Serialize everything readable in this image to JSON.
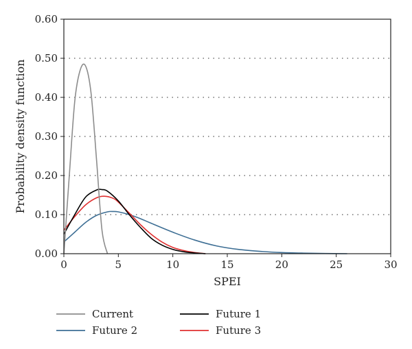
{
  "chart_data": {
    "type": "line",
    "title": "",
    "xlabel": "SPEI",
    "ylabel": "Probability density function",
    "xlim": [
      0,
      30
    ],
    "ylim": [
      0,
      0.6
    ],
    "xticks": [
      0,
      5,
      10,
      15,
      20,
      25,
      30
    ],
    "xtick_labels": [
      "0",
      "5",
      "10",
      "15",
      "20",
      "25",
      "30"
    ],
    "yticks": [
      0,
      0.1,
      0.2,
      0.3,
      0.4,
      0.5,
      0.6
    ],
    "ytick_labels": [
      "0.00",
      "0.10",
      "0.20",
      "0.30",
      "0.40",
      "0.50",
      "0.60"
    ],
    "grid": "horizontal dotted",
    "legend_placement": "bottom",
    "series": [
      {
        "name": "Current",
        "color": "#8c8c8c",
        "x": [
          0,
          0.5,
          1,
          1.5,
          2,
          2.5,
          3,
          3.5,
          4
        ],
        "y": [
          0.0,
          0.2,
          0.39,
          0.47,
          0.48,
          0.41,
          0.24,
          0.06,
          0.0
        ]
      },
      {
        "name": "Future 1",
        "color": "#000000",
        "x": [
          0,
          1,
          2,
          3,
          3.5,
          4,
          5,
          6,
          7,
          8,
          9,
          10,
          11,
          12,
          13
        ],
        "y": [
          0.05,
          0.1,
          0.145,
          0.163,
          0.164,
          0.16,
          0.135,
          0.1,
          0.068,
          0.04,
          0.022,
          0.011,
          0.005,
          0.002,
          0.0
        ]
      },
      {
        "name": "Future 2",
        "color": "#3d6e94",
        "x": [
          0,
          1,
          2,
          3,
          4,
          4.5,
          5,
          6,
          7,
          8,
          10,
          12,
          14,
          16,
          18,
          20,
          22,
          24,
          26
        ],
        "y": [
          0.03,
          0.055,
          0.08,
          0.098,
          0.107,
          0.108,
          0.107,
          0.1,
          0.09,
          0.078,
          0.055,
          0.035,
          0.02,
          0.011,
          0.006,
          0.003,
          0.0015,
          0.0006,
          0.0
        ]
      },
      {
        "name": "Future 3",
        "color": "#e03030",
        "x": [
          0,
          1,
          2,
          3,
          3.7,
          4.5,
          5,
          6,
          7,
          8,
          9,
          10,
          11,
          12,
          13
        ],
        "y": [
          0.06,
          0.095,
          0.125,
          0.143,
          0.147,
          0.142,
          0.132,
          0.104,
          0.075,
          0.05,
          0.03,
          0.016,
          0.008,
          0.003,
          0.0
        ]
      }
    ],
    "legend": {
      "columns": [
        [
          "Current",
          "Future 2"
        ],
        [
          "Future 1",
          "Future 3"
        ]
      ]
    }
  }
}
